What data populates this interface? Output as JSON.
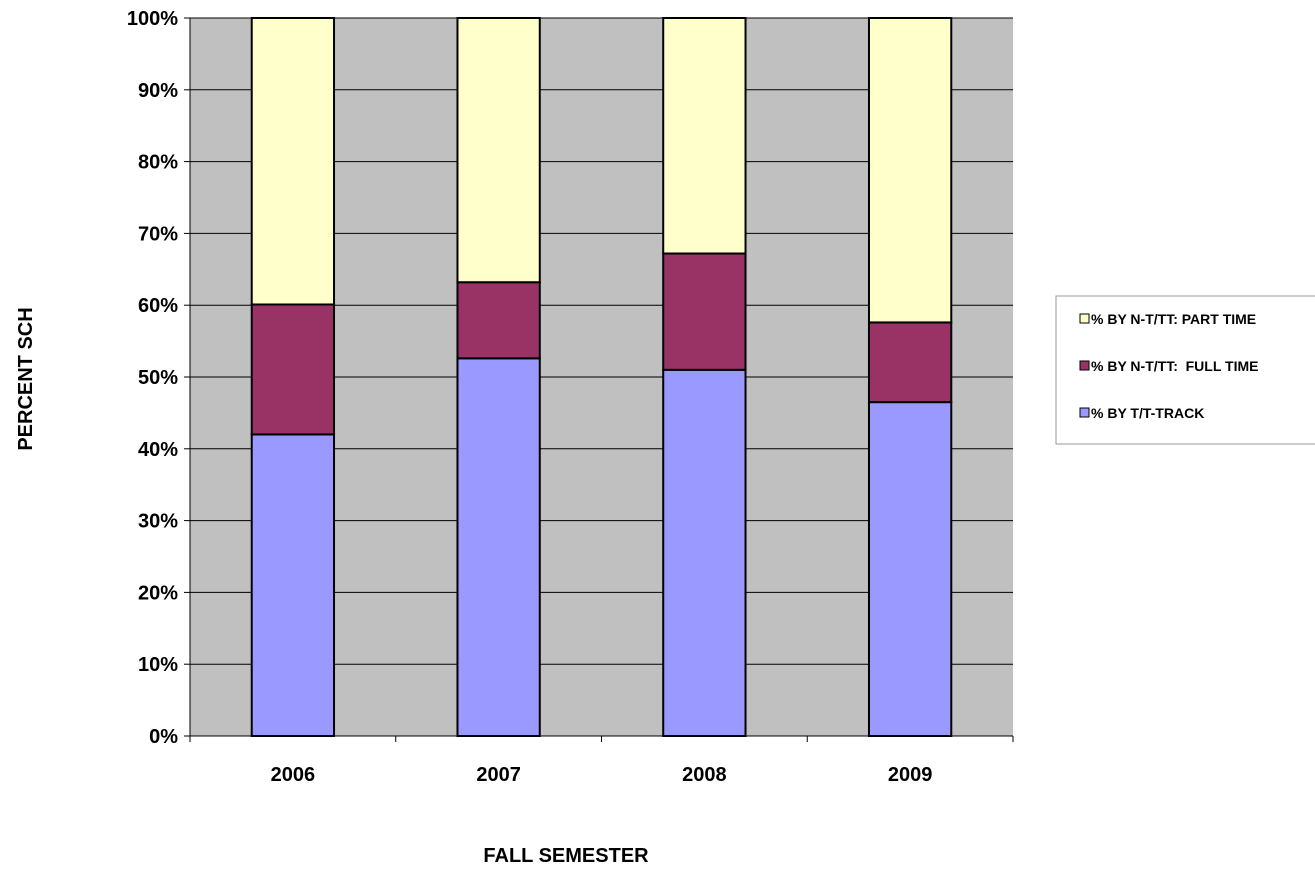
{
  "chart_data": {
    "type": "bar",
    "stacked": true,
    "categories": [
      "2006",
      "2007",
      "2008",
      "2009"
    ],
    "series": [
      {
        "name": "% BY T/T-TRACK",
        "color": "#9999ff",
        "values": [
          42,
          52.6,
          51,
          46.5
        ]
      },
      {
        "name": "% BY N-T/TT:  FULL TIME",
        "color": "#993366",
        "values": [
          18.1,
          10.6,
          16.2,
          11.1
        ]
      },
      {
        "name": "% BY N-T/TT: PART TIME",
        "color": "#ffffcc",
        "values": [
          39.9,
          36.8,
          32.8,
          42.4
        ]
      }
    ],
    "title": "",
    "xlabel": "FALL SEMESTER",
    "ylabel": "PERCENT SCH",
    "ylim": [
      0,
      100
    ],
    "yticks": [
      "0%",
      "10%",
      "20%",
      "30%",
      "40%",
      "50%",
      "60%",
      "70%",
      "80%",
      "90%",
      "100%"
    ],
    "grid": true,
    "plot_background": "#c0c0c0",
    "legend_position": "right"
  }
}
